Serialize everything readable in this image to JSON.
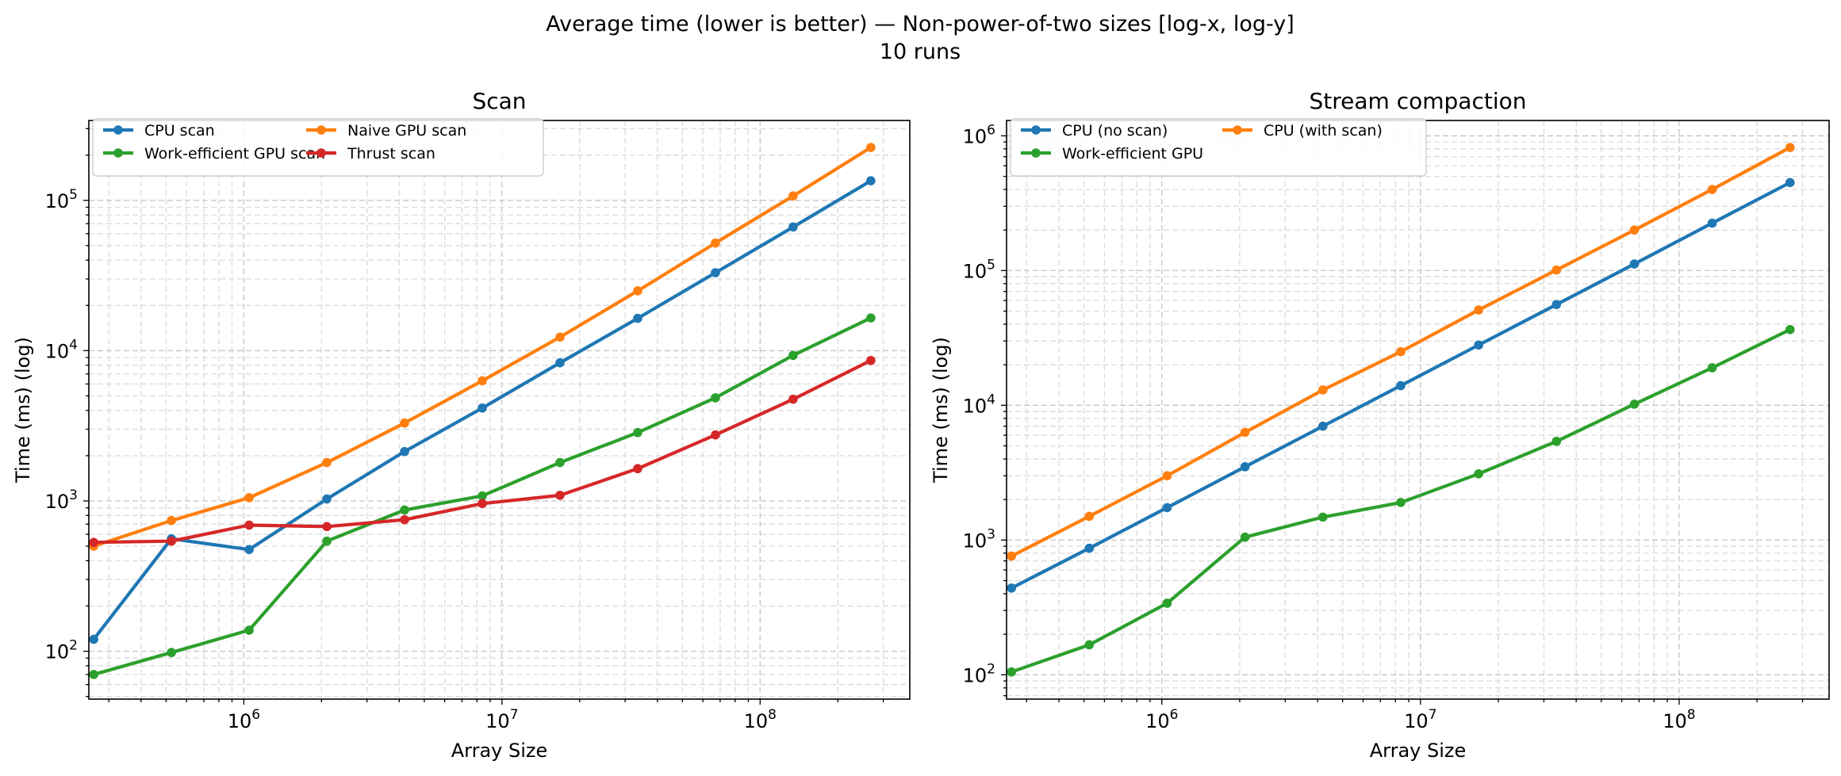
{
  "figure": {
    "suptitle_line1": "Average time (lower is better) — Non-power-of-two sizes [log-x, log-y]",
    "suptitle_line2": "10 runs"
  },
  "colors": {
    "blue": "#1f77b4",
    "orange": "#ff7f0e",
    "green": "#2ca02c",
    "red": "#d62728"
  },
  "chart_data": [
    {
      "type": "line",
      "title": "Scan",
      "xlabel": "Array Size",
      "ylabel": "Time (ms) (log)",
      "xscale": "log",
      "yscale": "log",
      "xlim": [
        251000,
        380000000
      ],
      "ylim": [
        48,
        340000
      ],
      "x_tick_labels": [
        "10^6",
        "10^7",
        "10^8"
      ],
      "y_tick_labels": [
        "10^2",
        "10^3",
        "10^4",
        "10^5"
      ],
      "grid": true,
      "legend": {
        "position": "top-left",
        "columns": 2
      },
      "x": [
        262141,
        524285,
        1048573,
        2097149,
        4194301,
        8388605,
        16777213,
        33554429,
        67108861,
        134217725,
        268435453
      ],
      "series": [
        {
          "name": "CPU scan",
          "color": "#1f77b4",
          "values": [
            120,
            560,
            475,
            1030,
            2130,
            4150,
            8300,
            16400,
            33000,
            66500,
            135000
          ]
        },
        {
          "name": "Naive GPU scan",
          "color": "#ff7f0e",
          "values": [
            500,
            740,
            1050,
            1800,
            3300,
            6300,
            12300,
            25000,
            52000,
            107000,
            225000
          ]
        },
        {
          "name": "Work-efficient GPU scan",
          "color": "#2ca02c",
          "values": [
            70,
            98,
            138,
            540,
            870,
            1080,
            1800,
            2850,
            4850,
            9300,
            16500
          ]
        },
        {
          "name": "Thrust scan",
          "color": "#d62728",
          "values": [
            530,
            540,
            690,
            675,
            750,
            960,
            1090,
            1640,
            2750,
            4750,
            8600
          ]
        }
      ]
    },
    {
      "type": "line",
      "title": "Stream compaction",
      "xlabel": "Array Size",
      "ylabel": "Time (ms) (log)",
      "xscale": "log",
      "yscale": "log",
      "xlim": [
        251000,
        380000000
      ],
      "ylim": [
        66,
        1300000
      ],
      "x_tick_labels": [
        "10^6",
        "10^7",
        "10^8"
      ],
      "y_tick_labels": [
        "10^2",
        "10^3",
        "10^4",
        "10^5",
        "10^6"
      ],
      "grid": true,
      "legend": {
        "position": "top-left",
        "columns": 2
      },
      "x": [
        262141,
        524285,
        1048573,
        2097149,
        4194301,
        8388605,
        16777213,
        33554429,
        67108861,
        134217725,
        268435453
      ],
      "series": [
        {
          "name": "CPU (no scan)",
          "color": "#1f77b4",
          "values": [
            440,
            870,
            1740,
            3500,
            7000,
            14000,
            28000,
            56000,
            112000,
            225000,
            450000
          ]
        },
        {
          "name": "CPU (with scan)",
          "color": "#ff7f0e",
          "values": [
            760,
            1500,
            3000,
            6300,
            13000,
            25000,
            51000,
            101000,
            200000,
            400000,
            820000
          ]
        },
        {
          "name": "Work-efficient GPU",
          "color": "#2ca02c",
          "values": [
            105,
            167,
            340,
            1050,
            1480,
            1900,
            3100,
            5400,
            10200,
            19000,
            36500
          ]
        }
      ]
    }
  ]
}
